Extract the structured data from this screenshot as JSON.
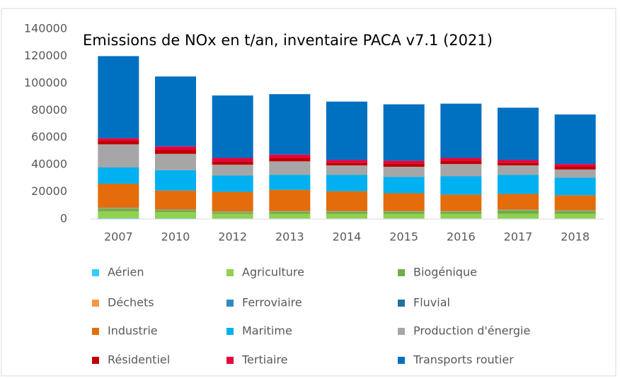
{
  "chart_data": {
    "type": "stacked_bar",
    "title": "Emissions de NOx en t/an, inventaire PACA v7.1 (2021)",
    "categories": [
      "2007",
      "2010",
      "2012",
      "2013",
      "2014",
      "2015",
      "2016",
      "2017",
      "2018"
    ],
    "ylim": [
      0,
      140000
    ],
    "yticks": [
      0,
      20000,
      40000,
      60000,
      80000,
      100000,
      120000,
      140000
    ],
    "grid": false,
    "series": [
      {
        "name": "Aérien",
        "color": "#33ccff",
        "values": [
          600,
          500,
          400,
          400,
          400,
          400,
          400,
          400,
          400
        ]
      },
      {
        "name": "Agriculture",
        "color": "#92d050",
        "values": [
          5000,
          4500,
          3500,
          3500,
          3500,
          3500,
          3500,
          3500,
          3500
        ]
      },
      {
        "name": "Biogénique",
        "color": "#70ad47",
        "values": [
          2000,
          1500,
          1200,
          1500,
          1500,
          1500,
          1500,
          2500,
          2000
        ]
      },
      {
        "name": "Déchets",
        "color": "#f79646",
        "values": [
          400,
          300,
          200,
          200,
          200,
          200,
          200,
          200,
          200
        ]
      },
      {
        "name": "Ferroviaire",
        "color": "#2e8bc0",
        "values": [
          300,
          200,
          200,
          200,
          200,
          200,
          200,
          200,
          200
        ]
      },
      {
        "name": "Fluvial",
        "color": "#1f6f9f",
        "values": [
          100,
          100,
          100,
          100,
          100,
          100,
          100,
          100,
          100
        ]
      },
      {
        "name": "Industrie",
        "color": "#e46c0a",
        "values": [
          17600,
          13900,
          14400,
          15600,
          14600,
          13100,
          12100,
          11600,
          11100
        ]
      },
      {
        "name": "Maritime",
        "color": "#00b0f0",
        "values": [
          12000,
          15000,
          12000,
          11000,
          12000,
          12000,
          13500,
          14000,
          13000
        ]
      },
      {
        "name": "Production d'énergie",
        "color": "#a6a6a6",
        "values": [
          17000,
          12000,
          8000,
          10000,
          7000,
          7500,
          9000,
          7000,
          6000
        ]
      },
      {
        "name": "Résidentiel",
        "color": "#c00000",
        "values": [
          2500,
          3000,
          2500,
          2500,
          2000,
          2500,
          2500,
          2000,
          2000
        ]
      },
      {
        "name": "Tertiaire",
        "color": "#e8003c",
        "values": [
          2000,
          2500,
          2500,
          2500,
          2000,
          2000,
          2000,
          2000,
          2000
        ]
      },
      {
        "name": "Transports routier",
        "color": "#0070c0",
        "values": [
          60500,
          51500,
          46000,
          44500,
          43000,
          41500,
          40000,
          38500,
          36500
        ]
      }
    ]
  }
}
